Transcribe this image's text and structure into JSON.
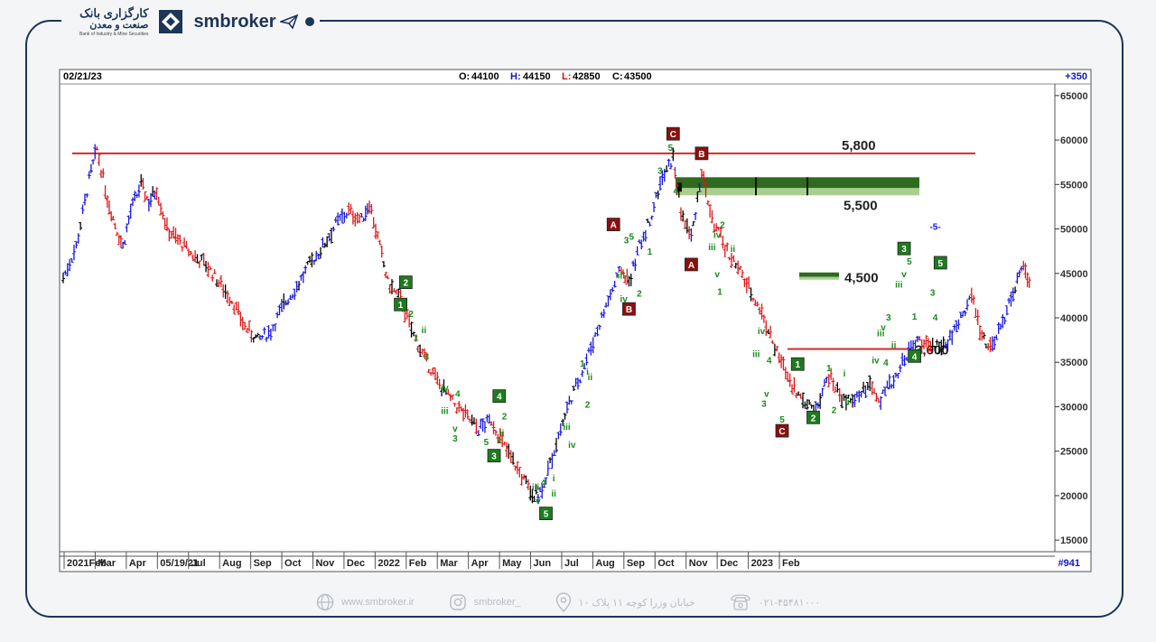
{
  "brand": {
    "bank_name_fa_line1": "کارگزاری بانک",
    "bank_name_fa_line2": "صنعت و معدن",
    "bank_name_en": "Bank of Industry & Mine Securities",
    "site_brand": "smbroker"
  },
  "header": {
    "date": "02/21/23",
    "open_label": "O:",
    "open": "44100",
    "high_label": "H:",
    "high": "44150",
    "low_label": "L:",
    "low": "42850",
    "close_label": "C:",
    "close": "43500",
    "change": "+350"
  },
  "footer": {
    "website": "www.smbroker.ir",
    "instagram": "smbroker_",
    "address": "خیابان وزرا کوچه ۱۱ پلاک ۱۰",
    "phone": "۰۲۱-۴۵۴۸۱۰۰۰"
  },
  "chart_data": {
    "type": "line",
    "ylim": [
      14000,
      66000
    ],
    "y_ticks": [
      "65000",
      "60000",
      "55000",
      "50000",
      "45000",
      "40000",
      "35000",
      "30000",
      "25000",
      "20000",
      "15000"
    ],
    "x_ticks": [
      "2021Feb",
      "Mar",
      "Apr",
      "05/19/21",
      "Jul",
      "Aug",
      "Sep",
      "Oct",
      "Nov",
      "Dec",
      "2022",
      "Feb",
      "Mar",
      "Apr",
      "May",
      "Jun",
      "Jul",
      "Aug",
      "Sep",
      "Oct",
      "Nov",
      "Dec",
      "2023",
      "Feb"
    ],
    "bar_count_label": "#941",
    "levels": [
      {
        "label": "5,800",
        "value": 58500,
        "color": "#d62828"
      },
      {
        "label": "5,500",
        "value": 55000,
        "color": "#2e6b1f"
      },
      {
        "label": "4,500",
        "value": 44800,
        "color": "#2e6b1f"
      },
      {
        "label": "3,600",
        "value": 36500,
        "color": "#d62828"
      }
    ],
    "price_path": [
      [
        0,
        44500
      ],
      [
        0.5,
        48000
      ],
      [
        1,
        55500
      ],
      [
        1.3,
        59000
      ],
      [
        1.7,
        53500
      ],
      [
        2,
        50500
      ],
      [
        2.3,
        48000
      ],
      [
        2.6,
        52000
      ],
      [
        3,
        55000
      ],
      [
        3.3,
        53000
      ],
      [
        3.6,
        54500
      ],
      [
        4,
        50000
      ],
      [
        4.5,
        48500
      ],
      [
        5,
        47000
      ],
      [
        5.5,
        46000
      ],
      [
        6,
        44000
      ],
      [
        6.5,
        42000
      ],
      [
        7,
        39000
      ],
      [
        7.5,
        37500
      ],
      [
        8,
        38500
      ],
      [
        8.5,
        41500
      ],
      [
        9,
        43500
      ],
      [
        9.5,
        46000
      ],
      [
        10,
        48000
      ],
      [
        10.5,
        50500
      ],
      [
        11,
        52000
      ],
      [
        11.5,
        51000
      ],
      [
        11.8,
        53000
      ],
      [
        12.2,
        48000
      ],
      [
        12.5,
        44000
      ],
      [
        13,
        42000
      ],
      [
        13.5,
        38000
      ],
      [
        14,
        35000
      ],
      [
        14.5,
        32500
      ],
      [
        15,
        30500
      ],
      [
        15.5,
        29000
      ],
      [
        16,
        27500
      ],
      [
        16.5,
        28500
      ],
      [
        17,
        25500
      ],
      [
        17.5,
        23000
      ],
      [
        18,
        20500
      ],
      [
        18.3,
        20000
      ],
      [
        18.6,
        22000
      ],
      [
        19,
        26000
      ],
      [
        19.5,
        30500
      ],
      [
        20,
        34000
      ],
      [
        20.5,
        38000
      ],
      [
        21,
        42000
      ],
      [
        21.5,
        45500
      ],
      [
        21.8,
        44000
      ],
      [
        22.2,
        48000
      ],
      [
        22.6,
        51000
      ],
      [
        23,
        55000
      ],
      [
        23.5,
        58000
      ],
      [
        23.8,
        52000
      ],
      [
        24.2,
        49000
      ],
      [
        24.6,
        56500
      ],
      [
        25,
        51000
      ],
      [
        25.5,
        48000
      ],
      [
        26,
        45500
      ],
      [
        26.5,
        43000
      ],
      [
        27,
        40000
      ],
      [
        27.5,
        36000
      ],
      [
        28,
        33000
      ],
      [
        28.5,
        30500
      ],
      [
        29,
        30000
      ],
      [
        29.5,
        33500
      ],
      [
        30,
        31000
      ],
      [
        30.5,
        30500
      ],
      [
        31,
        32500
      ],
      [
        31.5,
        31000
      ],
      [
        32,
        33000
      ],
      [
        32.5,
        36000
      ],
      [
        33,
        37500
      ],
      [
        33.5,
        36500
      ],
      [
        34,
        37000
      ],
      [
        34.5,
        39500
      ],
      [
        35,
        42500
      ],
      [
        35.4,
        38000
      ],
      [
        35.8,
        36500
      ],
      [
        36.2,
        39500
      ],
      [
        36.6,
        43000
      ],
      [
        37,
        45500
      ],
      [
        37.3,
        44000
      ]
    ],
    "wave_labels": [
      {
        "t": "C",
        "x": 23.5,
        "y": 60700,
        "kind": "box-dark"
      },
      {
        "t": "B",
        "x": 24.6,
        "y": 58500,
        "kind": "box-dark"
      },
      {
        "t": "A",
        "x": 21.2,
        "y": 50500,
        "kind": "box-dark"
      },
      {
        "t": "B",
        "x": 21.8,
        "y": 41000,
        "kind": "box-dark"
      },
      {
        "t": "A",
        "x": 24.2,
        "y": 46000,
        "kind": "box-dark"
      },
      {
        "t": "C",
        "x": 27.7,
        "y": 27300,
        "kind": "box-dark"
      },
      {
        "t": "2",
        "x": 13.2,
        "y": 44000,
        "kind": "box-green"
      },
      {
        "t": "1",
        "x": 13.0,
        "y": 41500,
        "kind": "box-green"
      },
      {
        "t": "4",
        "x": 16.8,
        "y": 31200,
        "kind": "box-green"
      },
      {
        "t": "3",
        "x": 16.6,
        "y": 24500,
        "kind": "box-green"
      },
      {
        "t": "5",
        "x": 18.6,
        "y": 18000,
        "kind": "box-green"
      },
      {
        "t": "1",
        "x": 28.3,
        "y": 34800,
        "kind": "box-green"
      },
      {
        "t": "2",
        "x": 28.9,
        "y": 28800,
        "kind": "box-green"
      },
      {
        "t": "3",
        "x": 32.4,
        "y": 47800,
        "kind": "box-green"
      },
      {
        "t": "4",
        "x": 32.8,
        "y": 35700,
        "kind": "box-green"
      },
      {
        "t": "5",
        "x": 33.8,
        "y": 46200,
        "kind": "box-green"
      }
    ],
    "small_labels": [
      {
        "t": "5",
        "x": 23.4,
        "y": 59200
      },
      {
        "t": "3",
        "x": 23.0,
        "y": 56600
      },
      {
        "t": "4",
        "x": 23.6,
        "y": 54300
      },
      {
        "t": "3",
        "x": 21.7,
        "y": 48800
      },
      {
        "t": "5",
        "x": 21.9,
        "y": 49200
      },
      {
        "t": "iii",
        "x": 21.5,
        "y": 44800
      },
      {
        "t": "iv",
        "x": 21.6,
        "y": 42200
      },
      {
        "t": "2",
        "x": 22.2,
        "y": 42800
      },
      {
        "t": "1",
        "x": 22.6,
        "y": 47500
      },
      {
        "t": "iv",
        "x": 25.2,
        "y": 49400
      },
      {
        "t": "2",
        "x": 25.4,
        "y": 50500
      },
      {
        "t": "iii",
        "x": 25.0,
        "y": 48000
      },
      {
        "t": "ii",
        "x": 25.8,
        "y": 47800
      },
      {
        "t": "v",
        "x": 25.2,
        "y": 45000
      },
      {
        "t": "1",
        "x": 25.3,
        "y": 43000
      },
      {
        "t": "iv",
        "x": 26.9,
        "y": 38600
      },
      {
        "t": "iii",
        "x": 26.7,
        "y": 36000
      },
      {
        "t": "4",
        "x": 27.2,
        "y": 35300
      },
      {
        "t": "v",
        "x": 27.1,
        "y": 31500
      },
      {
        "t": "3",
        "x": 27.0,
        "y": 30400
      },
      {
        "t": "5",
        "x": 27.7,
        "y": 28600
      },
      {
        "t": "1",
        "x": 29.5,
        "y": 34400
      },
      {
        "t": "2",
        "x": 29.7,
        "y": 29700
      },
      {
        "t": "i",
        "x": 30.1,
        "y": 33800
      },
      {
        "t": "ii",
        "x": 30.2,
        "y": 30600
      },
      {
        "t": "iii",
        "x": 31.5,
        "y": 38300
      },
      {
        "t": "3",
        "x": 31.8,
        "y": 40100
      },
      {
        "t": "v",
        "x": 31.6,
        "y": 39000
      },
      {
        "t": "iv",
        "x": 31.3,
        "y": 35300
      },
      {
        "t": "4",
        "x": 31.7,
        "y": 35000
      },
      {
        "t": "ii",
        "x": 32.0,
        "y": 37000
      },
      {
        "t": "v",
        "x": 32.4,
        "y": 45000
      },
      {
        "t": "iii",
        "x": 32.2,
        "y": 43800
      },
      {
        "t": "5",
        "x": 32.6,
        "y": 46400
      },
      {
        "t": "1",
        "x": 32.8,
        "y": 40200
      },
      {
        "t": "3",
        "x": 33.5,
        "y": 42900
      },
      {
        "t": "4",
        "x": 33.6,
        "y": 40100
      },
      {
        "t": "iv",
        "x": 14.7,
        "y": 32200
      },
      {
        "t": "4",
        "x": 15.2,
        "y": 31500
      },
      {
        "t": "iii",
        "x": 14.7,
        "y": 29600
      },
      {
        "t": "v",
        "x": 15.1,
        "y": 27600
      },
      {
        "t": "3",
        "x": 15.1,
        "y": 26500
      },
      {
        "t": "5",
        "x": 16.3,
        "y": 26100
      },
      {
        "t": "2",
        "x": 17.0,
        "y": 29000
      },
      {
        "t": "1",
        "x": 16.8,
        "y": 26300
      },
      {
        "t": "ii",
        "x": 16.9,
        "y": 27100
      },
      {
        "t": "2",
        "x": 13.4,
        "y": 40500
      },
      {
        "t": "1",
        "x": 13.6,
        "y": 37800
      },
      {
        "t": "ii",
        "x": 13.9,
        "y": 38700
      },
      {
        "t": "3",
        "x": 14.0,
        "y": 35700
      },
      {
        "t": "iii",
        "x": 18.2,
        "y": 21000
      },
      {
        "t": "4",
        "x": 18.5,
        "y": 21500
      },
      {
        "t": "ii",
        "x": 18.9,
        "y": 20300
      },
      {
        "t": "v",
        "x": 18.3,
        "y": 19500
      },
      {
        "t": "i",
        "x": 18.9,
        "y": 22000
      },
      {
        "t": "iii",
        "x": 19.4,
        "y": 27800
      },
      {
        "t": "iv",
        "x": 19.6,
        "y": 25800
      },
      {
        "t": "1",
        "x": 20.0,
        "y": 34900
      },
      {
        "t": "ii",
        "x": 20.3,
        "y": 33400
      },
      {
        "t": "i",
        "x": 20.2,
        "y": 34000
      },
      {
        "t": "2",
        "x": 20.2,
        "y": 30300
      },
      {
        "t": "-5-",
        "x": 33.6,
        "y": 50300
      }
    ],
    "colors": {
      "up": "#1515e0",
      "down": "#e01515",
      "neutral": "#000000",
      "wave": "#1a8a1a",
      "box_dark": "#8a1010",
      "box_green": "#1f7a1f"
    }
  }
}
